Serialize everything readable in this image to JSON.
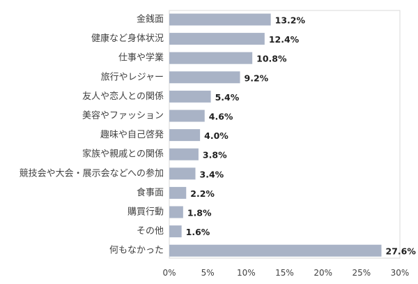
{
  "chart_data": {
    "type": "bar",
    "orientation": "horizontal",
    "categories": [
      "金銭面",
      "健康など身体状況",
      "仕事や学業",
      "旅行やレジャー",
      "友人や恋人との関係",
      "美容やファッション",
      "趣味や自己啓発",
      "家族や親戚との関係",
      "競技会や大会・展示会などへの参加",
      "食事面",
      "購買行動",
      "その他",
      "何もなかった"
    ],
    "values": [
      13.2,
      12.4,
      10.8,
      9.2,
      5.4,
      4.6,
      4.0,
      3.8,
      3.4,
      2.2,
      1.8,
      1.6,
      27.6
    ],
    "value_labels": [
      "13.2%",
      "12.4%",
      "10.8%",
      "9.2%",
      "5.4%",
      "4.6%",
      "4.0%",
      "3.8%",
      "3.4%",
      "2.2%",
      "1.8%",
      "1.6%",
      "27.6%"
    ],
    "xlim": [
      0,
      30
    ],
    "x_ticks": [
      0,
      5,
      10,
      15,
      20,
      25,
      30
    ],
    "x_tick_labels": [
      "0%",
      "5%",
      "10%",
      "15%",
      "20%",
      "25%",
      "30%"
    ],
    "grid": false,
    "legend": "none",
    "bar_color": "#a9b3c6",
    "axis_color": "#d9d9d9"
  }
}
